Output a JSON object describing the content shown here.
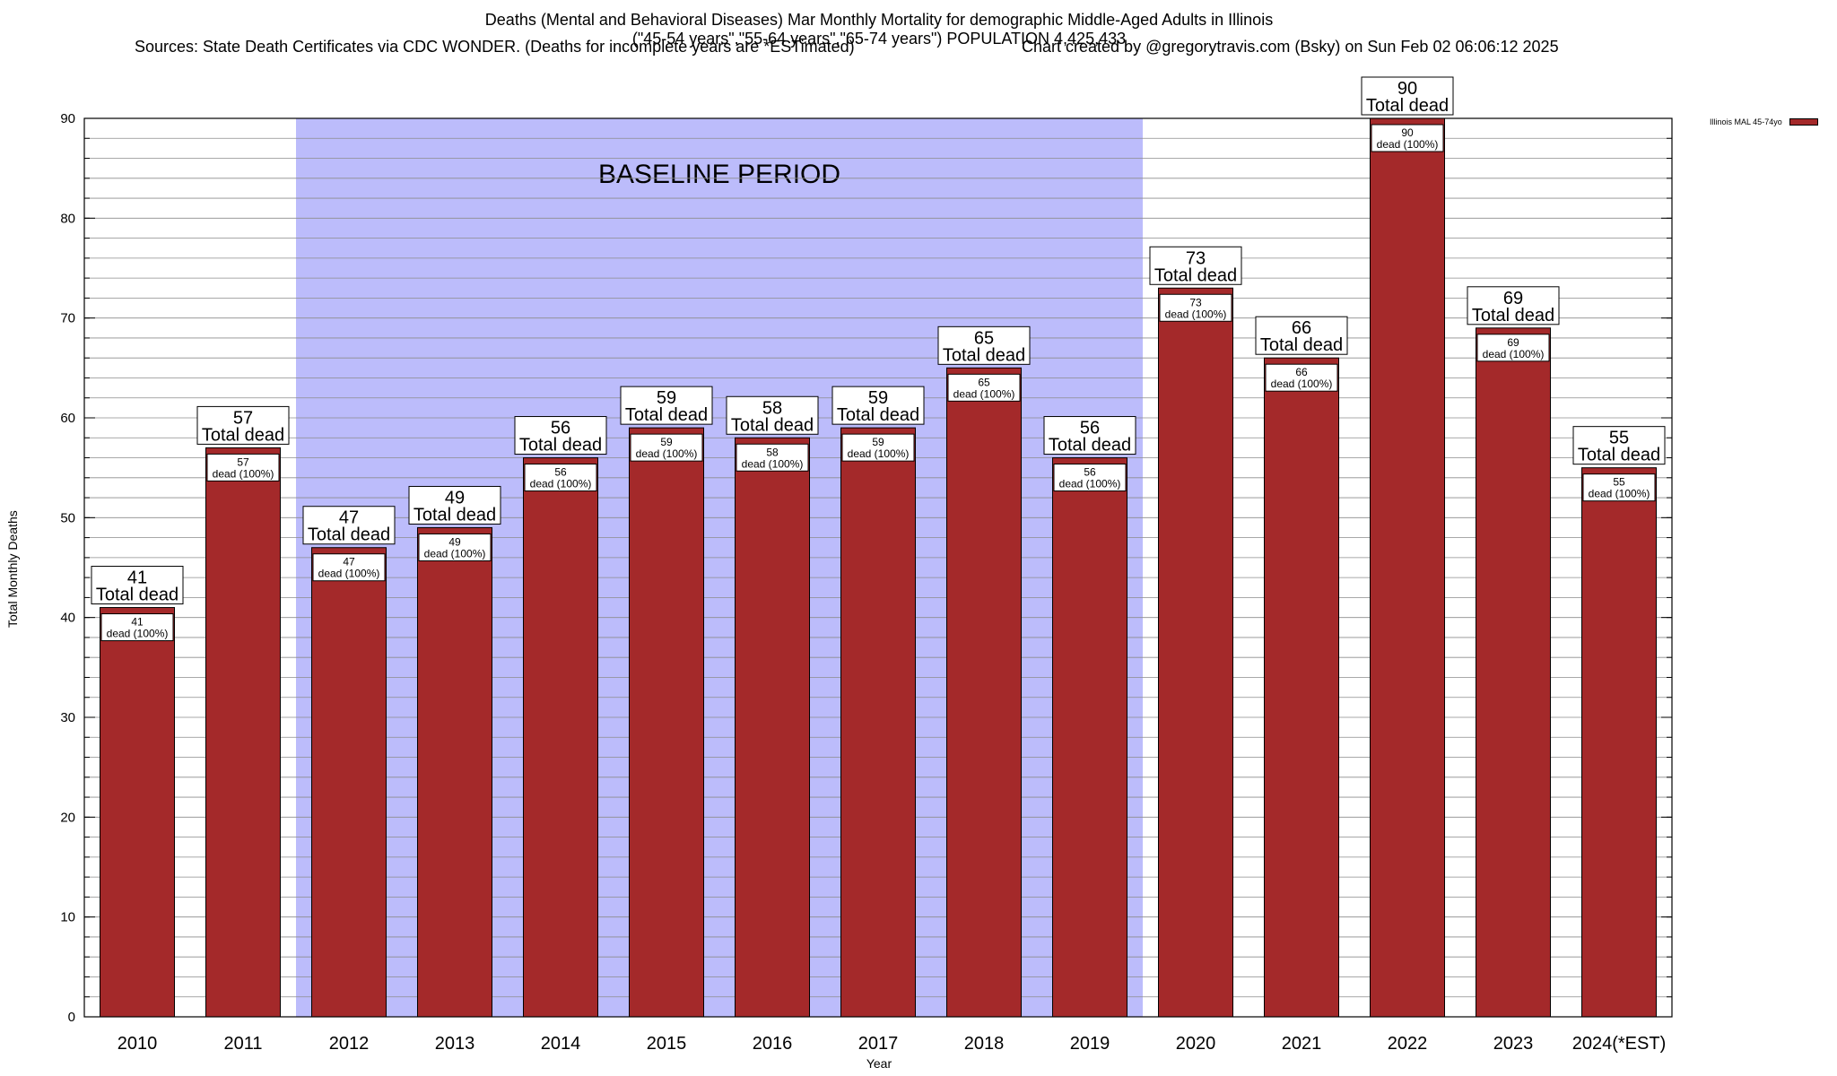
{
  "header": {
    "title_line1": "Deaths (Mental and Behavioral Diseases) Mar Monthly Mortality for demographic Middle-Aged Adults in Illinois",
    "title_line2": "(\"45-54 years\",\"55-64 years\",\"65-74 years\") POPULATION 4,425,433",
    "sources": "Sources: State Death Certificates via CDC WONDER. (Deaths for incomplete years are *ESTimated)",
    "credit": "Chart created by @gregorytravis.com (Bsky) on Sun Feb 02 06:06:12 2025"
  },
  "chart_data": {
    "type": "bar",
    "ylabel": "Total Monthly Deaths",
    "xlabel": "Year",
    "ylim": [
      0,
      90
    ],
    "y_major_ticks": [
      0,
      10,
      20,
      30,
      40,
      50,
      60,
      70,
      80,
      90
    ],
    "y_minor_step": 2,
    "grid": true,
    "legend_position": "top-right",
    "categories": [
      "2010",
      "2011",
      "2012",
      "2013",
      "2014",
      "2015",
      "2016",
      "2017",
      "2018",
      "2019",
      "2020",
      "2021",
      "2022",
      "2023",
      "2024(*EST)"
    ],
    "series": [
      {
        "name": "Illinois MAL 45-74yo",
        "color": "#a4292a",
        "values": [
          41,
          57,
          47,
          49,
          56,
          59,
          58,
          59,
          65,
          56,
          73,
          66,
          90,
          69,
          55
        ]
      }
    ],
    "bar_label_top_suffix": "Total dead",
    "bar_label_inner_suffix": "dead (100%)",
    "annotation": {
      "text": "BASELINE PERIOD",
      "start_category": "2012",
      "end_category": "2019",
      "color": "#bcbcfb"
    }
  }
}
